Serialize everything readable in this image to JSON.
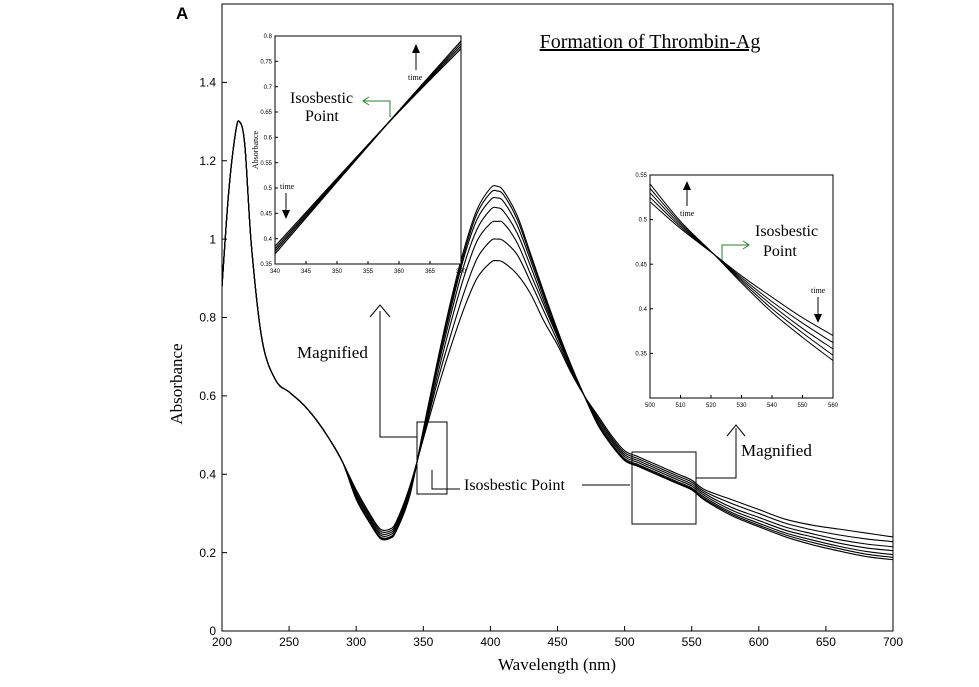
{
  "figure": {
    "panel_label": "A",
    "title": "Formation of Thrombin-Ag",
    "annotations": {
      "magnified_left": "Magnified",
      "magnified_right": "Magnified",
      "isosbestic_main": "Isosbestic Point",
      "inset1_iso_line1": "Isosbestic",
      "inset1_iso_line2": "Point",
      "inset2_iso_line1": "Isosbestic",
      "inset2_iso_line2": "Point",
      "time": "time"
    }
  },
  "chart_data": [
    {
      "id": "main",
      "type": "line",
      "title": "Formation of Thrombin-Ag",
      "xlabel": "Wavelength (nm)",
      "ylabel": "Absorbance",
      "xlim": [
        200,
        700
      ],
      "ylim": [
        0,
        1.6
      ],
      "xticks": [
        200,
        250,
        300,
        350,
        400,
        450,
        500,
        550,
        600,
        650,
        700
      ],
      "yticks": [
        0,
        0.2,
        0.4,
        0.6,
        0.8,
        1,
        1.2,
        1.4
      ],
      "ytick_labels": [
        "0",
        "0.2",
        "0.4",
        "0.6",
        "0.8",
        "1",
        "1.2",
        "1.4"
      ],
      "grid": false,
      "x": [
        200,
        205,
        210,
        213,
        217,
        222,
        230,
        240,
        250,
        260,
        270,
        280,
        290,
        300,
        310,
        318,
        325,
        330,
        340,
        350,
        360,
        370,
        380,
        390,
        400,
        405,
        410,
        420,
        430,
        440,
        450,
        460,
        470,
        480,
        490,
        500,
        510,
        520,
        530,
        540,
        550,
        560,
        580,
        600,
        620,
        640,
        660,
        680,
        700
      ],
      "series": [
        {
          "values": [
            0.88,
            1.12,
            1.27,
            1.3,
            1.24,
            0.98,
            0.74,
            0.64,
            0.61,
            0.58,
            0.54,
            0.49,
            0.43,
            0.36,
            0.3,
            0.26,
            0.26,
            0.28,
            0.37,
            0.49,
            0.61,
            0.72,
            0.82,
            0.9,
            0.94,
            0.945,
            0.94,
            0.91,
            0.86,
            0.79,
            0.73,
            0.66,
            0.6,
            0.55,
            0.5,
            0.46,
            0.445,
            0.43,
            0.415,
            0.4,
            0.385,
            0.36,
            0.335,
            0.31,
            0.285,
            0.27,
            0.26,
            0.25,
            0.24
          ]
        },
        {
          "values": [
            0.88,
            1.12,
            1.27,
            1.3,
            1.24,
            0.98,
            0.74,
            0.64,
            0.61,
            0.58,
            0.54,
            0.49,
            0.43,
            0.355,
            0.295,
            0.255,
            0.255,
            0.275,
            0.365,
            0.495,
            0.63,
            0.75,
            0.86,
            0.95,
            0.995,
            1.0,
            0.995,
            0.96,
            0.89,
            0.815,
            0.74,
            0.665,
            0.6,
            0.545,
            0.495,
            0.455,
            0.44,
            0.425,
            0.41,
            0.395,
            0.38,
            0.355,
            0.325,
            0.3,
            0.275,
            0.258,
            0.245,
            0.235,
            0.228
          ]
        },
        {
          "values": [
            0.88,
            1.12,
            1.27,
            1.3,
            1.24,
            0.98,
            0.74,
            0.64,
            0.61,
            0.58,
            0.54,
            0.49,
            0.43,
            0.35,
            0.29,
            0.25,
            0.25,
            0.27,
            0.36,
            0.5,
            0.645,
            0.78,
            0.9,
            0.995,
            1.04,
            1.045,
            1.04,
            0.99,
            0.91,
            0.83,
            0.75,
            0.67,
            0.6,
            0.54,
            0.49,
            0.45,
            0.435,
            0.42,
            0.405,
            0.39,
            0.375,
            0.35,
            0.315,
            0.29,
            0.265,
            0.248,
            0.233,
            0.222,
            0.215
          ]
        },
        {
          "values": [
            0.88,
            1.12,
            1.27,
            1.3,
            1.24,
            0.98,
            0.74,
            0.64,
            0.61,
            0.58,
            0.54,
            0.49,
            0.43,
            0.345,
            0.285,
            0.245,
            0.245,
            0.265,
            0.355,
            0.505,
            0.66,
            0.8,
            0.93,
            1.025,
            1.075,
            1.08,
            1.07,
            1.015,
            0.93,
            0.84,
            0.755,
            0.675,
            0.6,
            0.535,
            0.485,
            0.445,
            0.43,
            0.415,
            0.4,
            0.385,
            0.37,
            0.345,
            0.308,
            0.282,
            0.257,
            0.24,
            0.224,
            0.212,
            0.205
          ]
        },
        {
          "values": [
            0.88,
            1.12,
            1.27,
            1.3,
            1.24,
            0.98,
            0.74,
            0.64,
            0.61,
            0.58,
            0.54,
            0.49,
            0.43,
            0.34,
            0.28,
            0.24,
            0.24,
            0.26,
            0.35,
            0.51,
            0.67,
            0.815,
            0.95,
            1.05,
            1.1,
            1.105,
            1.095,
            1.035,
            0.945,
            0.85,
            0.76,
            0.675,
            0.6,
            0.53,
            0.48,
            0.44,
            0.425,
            0.41,
            0.395,
            0.38,
            0.365,
            0.34,
            0.302,
            0.275,
            0.25,
            0.232,
            0.216,
            0.203,
            0.195
          ]
        },
        {
          "values": [
            0.88,
            1.12,
            1.27,
            1.3,
            1.24,
            0.98,
            0.74,
            0.64,
            0.61,
            0.58,
            0.54,
            0.49,
            0.43,
            0.338,
            0.278,
            0.238,
            0.238,
            0.258,
            0.348,
            0.512,
            0.675,
            0.825,
            0.96,
            1.065,
            1.118,
            1.123,
            1.112,
            1.05,
            0.955,
            0.858,
            0.765,
            0.678,
            0.6,
            0.528,
            0.477,
            0.437,
            0.422,
            0.407,
            0.392,
            0.377,
            0.362,
            0.336,
            0.298,
            0.27,
            0.245,
            0.226,
            0.21,
            0.196,
            0.188
          ]
        },
        {
          "values": [
            0.88,
            1.12,
            1.27,
            1.3,
            1.24,
            0.98,
            0.74,
            0.64,
            0.61,
            0.58,
            0.54,
            0.49,
            0.43,
            0.336,
            0.276,
            0.236,
            0.236,
            0.256,
            0.346,
            0.514,
            0.68,
            0.835,
            0.97,
            1.075,
            1.13,
            1.135,
            1.122,
            1.06,
            0.962,
            0.863,
            0.768,
            0.68,
            0.6,
            0.526,
            0.475,
            0.435,
            0.42,
            0.405,
            0.39,
            0.375,
            0.36,
            0.333,
            0.294,
            0.266,
            0.24,
            0.22,
            0.204,
            0.19,
            0.182
          ]
        }
      ]
    },
    {
      "id": "inset_left",
      "type": "line",
      "ylabel": "Absorbance",
      "xlim": [
        340,
        370
      ],
      "ylim": [
        0.35,
        0.8
      ],
      "xticks": [
        340,
        345,
        350,
        355,
        360,
        365,
        370
      ],
      "yticks": [
        0.35,
        0.4,
        0.45,
        0.5,
        0.55,
        0.6,
        0.65,
        0.7,
        0.75,
        0.8
      ],
      "ytick_labels": [
        "0.35",
        "0.4",
        "0.45",
        "0.5",
        "0.55",
        "0.6",
        "0.65",
        "0.7",
        "0.75",
        "0.8"
      ],
      "x": [
        340,
        358,
        370
      ],
      "series": [
        {
          "values": [
            0.385,
            0.625,
            0.775
          ]
        },
        {
          "values": [
            0.38,
            0.625,
            0.78
          ]
        },
        {
          "values": [
            0.375,
            0.625,
            0.785
          ]
        },
        {
          "values": [
            0.37,
            0.625,
            0.79
          ]
        }
      ]
    },
    {
      "id": "inset_right",
      "type": "line",
      "xlim": [
        500,
        560
      ],
      "ylim": [
        0.3,
        0.55
      ],
      "xticks": [
        500,
        510,
        520,
        530,
        540,
        550,
        560
      ],
      "yticks": [
        0.35,
        0.4,
        0.45,
        0.5,
        0.55
      ],
      "ytick_labels": [
        "0.35",
        "0.4",
        "0.45",
        "0.5",
        "0.55"
      ],
      "x": [
        500,
        510,
        521,
        530,
        540,
        550,
        560
      ],
      "series": [
        {
          "values": [
            0.52,
            0.49,
            0.461,
            0.437,
            0.413,
            0.39,
            0.37
          ]
        },
        {
          "values": [
            0.525,
            0.492,
            0.461,
            0.435,
            0.408,
            0.384,
            0.362
          ]
        },
        {
          "values": [
            0.53,
            0.494,
            0.461,
            0.433,
            0.404,
            0.378,
            0.355
          ]
        },
        {
          "values": [
            0.535,
            0.496,
            0.461,
            0.431,
            0.4,
            0.373,
            0.348
          ]
        },
        {
          "values": [
            0.54,
            0.498,
            0.461,
            0.429,
            0.396,
            0.368,
            0.342
          ]
        }
      ]
    }
  ]
}
